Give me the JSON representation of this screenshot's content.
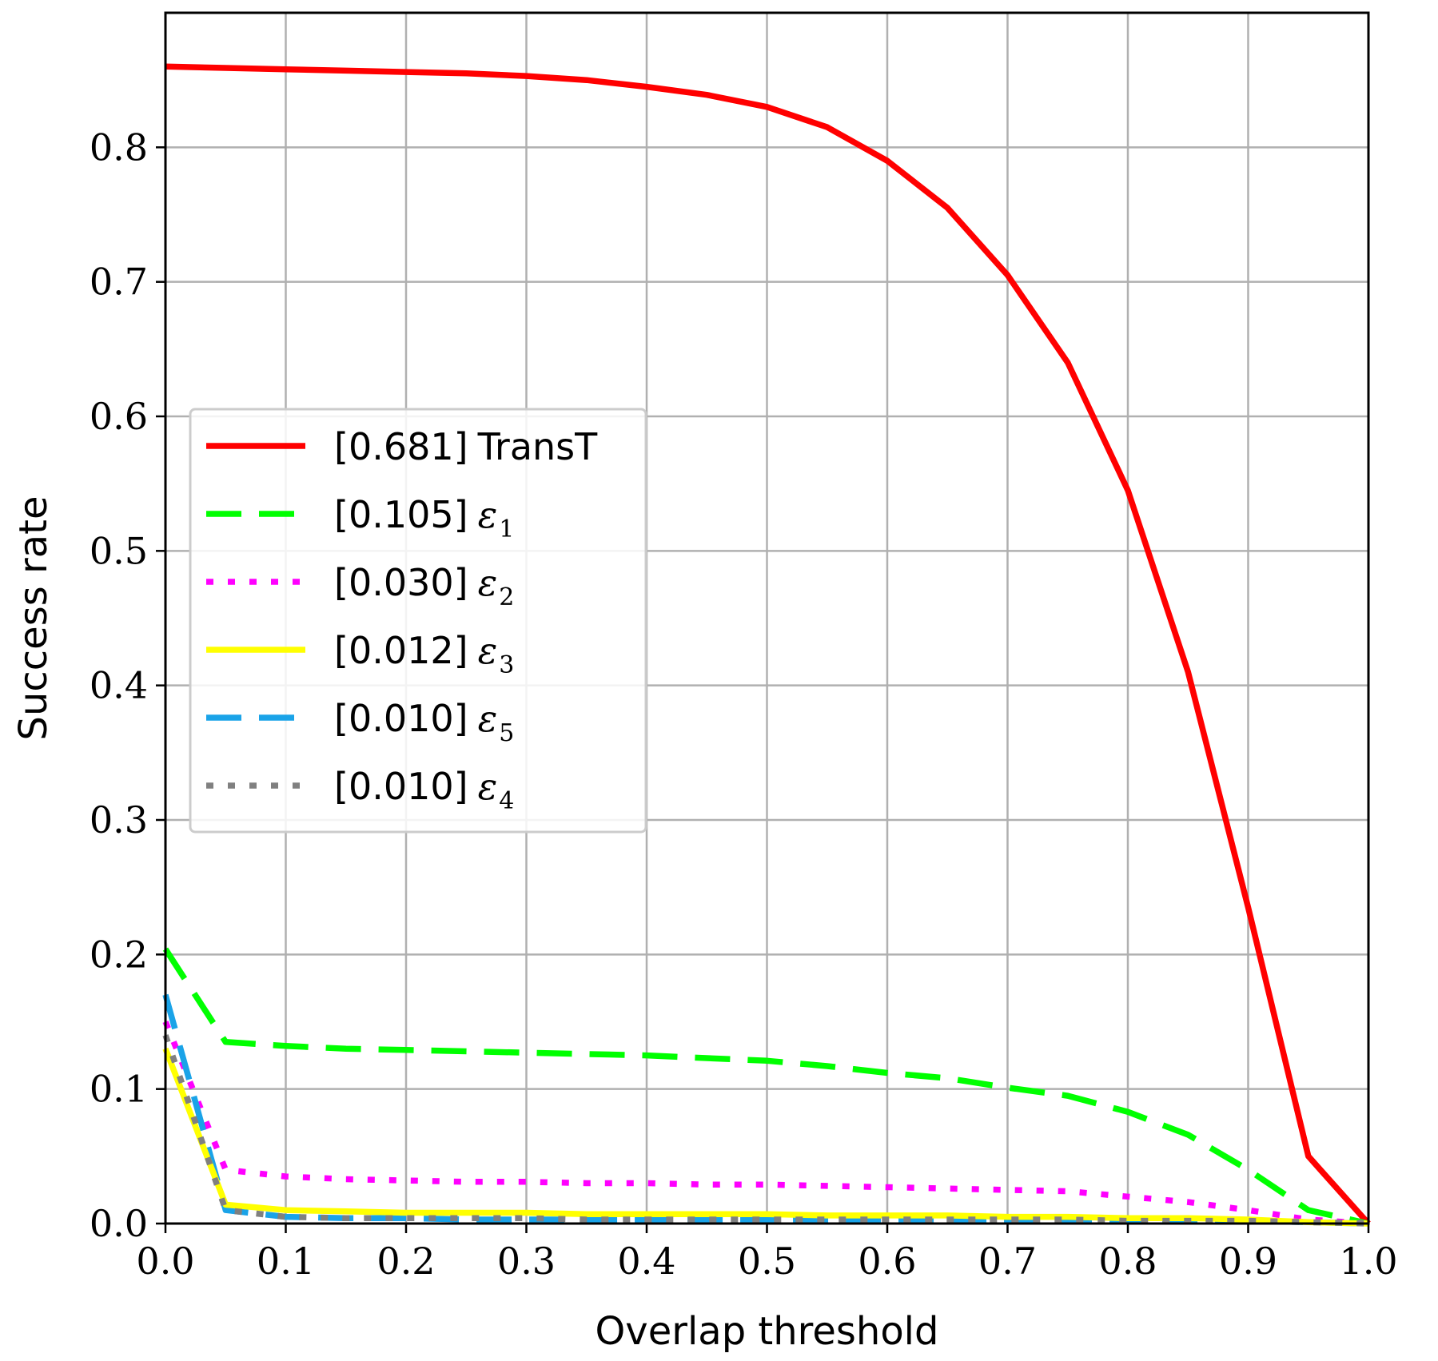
{
  "chart_data": {
    "type": "line",
    "xlabel": "Overlap threshold",
    "ylabel": "Success rate",
    "xlim": [
      0.0,
      1.0
    ],
    "ylim": [
      0.0,
      0.9
    ],
    "xticks": [
      "0.0",
      "0.1",
      "0.2",
      "0.3",
      "0.4",
      "0.5",
      "0.6",
      "0.7",
      "0.8",
      "0.9",
      "1.0"
    ],
    "yticks": [
      "0.0",
      "0.1",
      "0.2",
      "0.3",
      "0.4",
      "0.5",
      "0.6",
      "0.7",
      "0.8"
    ],
    "grid": true,
    "legend_position": "center-left",
    "x": [
      0.0,
      0.05,
      0.1,
      0.15,
      0.2,
      0.25,
      0.3,
      0.35,
      0.4,
      0.45,
      0.5,
      0.55,
      0.6,
      0.65,
      0.7,
      0.75,
      0.8,
      0.85,
      0.9,
      0.95,
      1.0
    ],
    "series": [
      {
        "legend_value": "[0.681]",
        "legend_name": "TransT",
        "legend_subscript": "",
        "color": "#ff0000",
        "style": "solid",
        "values": [
          0.86,
          0.859,
          0.858,
          0.857,
          0.856,
          0.855,
          0.853,
          0.85,
          0.845,
          0.839,
          0.83,
          0.815,
          0.79,
          0.755,
          0.705,
          0.64,
          0.545,
          0.41,
          0.235,
          0.05,
          0.0
        ]
      },
      {
        "legend_value": "[0.105]",
        "legend_name": "ε",
        "legend_subscript": "1",
        "color": "#00ff00",
        "style": "dashed",
        "values": [
          0.204,
          0.135,
          0.132,
          0.13,
          0.129,
          0.128,
          0.127,
          0.126,
          0.125,
          0.123,
          0.121,
          0.117,
          0.112,
          0.108,
          0.101,
          0.095,
          0.083,
          0.066,
          0.04,
          0.01,
          0.0
        ]
      },
      {
        "legend_value": "[0.030]",
        "legend_name": "ε",
        "legend_subscript": "2",
        "color": "#ff00ff",
        "style": "dotted",
        "values": [
          0.15,
          0.04,
          0.035,
          0.033,
          0.032,
          0.031,
          0.031,
          0.03,
          0.03,
          0.029,
          0.029,
          0.028,
          0.027,
          0.026,
          0.025,
          0.024,
          0.02,
          0.016,
          0.01,
          0.003,
          0.0
        ]
      },
      {
        "legend_value": "[0.012]",
        "legend_name": "ε",
        "legend_subscript": "3",
        "color": "#ffff00",
        "style": "solid",
        "values": [
          0.13,
          0.014,
          0.01,
          0.009,
          0.008,
          0.008,
          0.008,
          0.007,
          0.007,
          0.007,
          0.007,
          0.006,
          0.006,
          0.006,
          0.005,
          0.005,
          0.004,
          0.004,
          0.003,
          0.001,
          0.0
        ]
      },
      {
        "legend_value": "[0.010]",
        "legend_name": "ε",
        "legend_subscript": "5",
        "color": "#1aa3e8",
        "style": "dashed",
        "values": [
          0.17,
          0.01,
          0.005,
          0.004,
          0.004,
          0.003,
          0.003,
          0.003,
          0.003,
          0.003,
          0.003,
          0.003,
          0.003,
          0.003,
          0.003,
          0.003,
          0.002,
          0.002,
          0.002,
          0.001,
          0.0
        ]
      },
      {
        "legend_value": "[0.010]",
        "legend_name": "ε",
        "legend_subscript": "4",
        "color": "#808080",
        "style": "dotted",
        "values": [
          0.14,
          0.01,
          0.005,
          0.004,
          0.004,
          0.004,
          0.004,
          0.003,
          0.003,
          0.003,
          0.003,
          0.003,
          0.003,
          0.003,
          0.003,
          0.003,
          0.002,
          0.002,
          0.002,
          0.001,
          0.0
        ]
      }
    ]
  }
}
